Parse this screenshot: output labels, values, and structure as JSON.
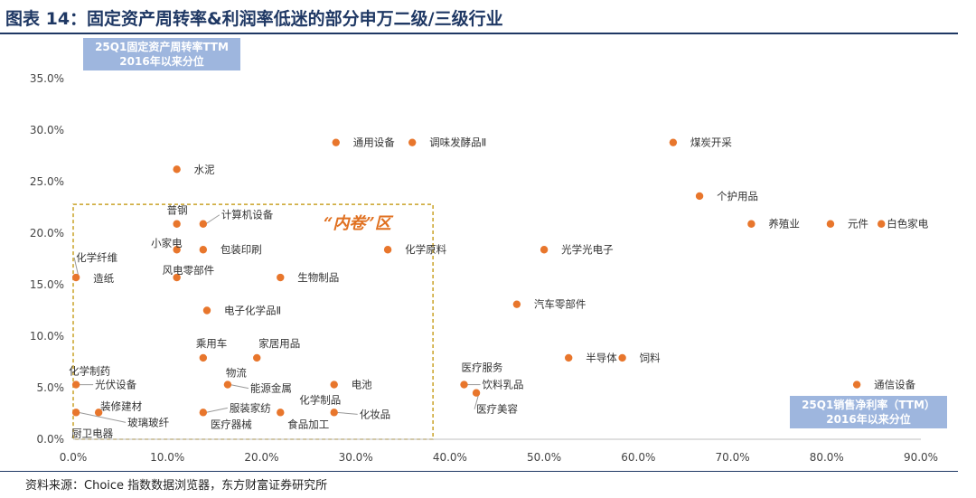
{
  "title": "图表 14：固定资产周转率&利润率低迷的部分申万二级/三级行业",
  "source": "资料来源：Choice 指数数据浏览器，东方财富证券研究所",
  "axis_notes": {
    "y": [
      "25Q1固定资产周转率TTM",
      "2016年以来分位"
    ],
    "x": [
      "25Q1销售净利率（TTM）",
      "2016年以来分位"
    ]
  },
  "zone_label": "“内卷”区",
  "colors": {
    "point": "#e8762c",
    "zone_border": "#c9a227",
    "title": "#1f3864",
    "badge": "#9eb6de"
  },
  "chart_data": {
    "type": "scatter",
    "xlim": [
      0,
      90
    ],
    "ylim": [
      0,
      35
    ],
    "x_ticks": [
      "0.0%",
      "10.0%",
      "20.0%",
      "30.0%",
      "40.0%",
      "50.0%",
      "60.0%",
      "70.0%",
      "80.0%",
      "90.0%"
    ],
    "y_ticks": [
      "0.0%",
      "5.0%",
      "10.0%",
      "15.0%",
      "20.0%",
      "25.0%",
      "30.0%",
      "35.0%"
    ],
    "grid": false,
    "zone": {
      "x": [
        0,
        38.2
      ],
      "y": [
        0,
        22.8
      ]
    },
    "points": [
      {
        "name": "通用设备",
        "x": 27.9,
        "y": 28.8
      },
      {
        "name": "调味发酵品Ⅱ",
        "x": 36.0,
        "y": 28.8
      },
      {
        "name": "煤炭开采",
        "x": 63.7,
        "y": 28.8
      },
      {
        "name": "水泥",
        "x": 11.0,
        "y": 26.2
      },
      {
        "name": "个护用品",
        "x": 66.5,
        "y": 23.6
      },
      {
        "name": "普钢",
        "x": 11.0,
        "y": 20.9
      },
      {
        "name": "计算机设备",
        "x": 13.8,
        "y": 20.9
      },
      {
        "name": "养殖业",
        "x": 72.0,
        "y": 20.9
      },
      {
        "name": "元件",
        "x": 80.4,
        "y": 20.9
      },
      {
        "name": "白色家电",
        "x": 85.8,
        "y": 20.9
      },
      {
        "name": "小家电",
        "x": 11.0,
        "y": 18.4
      },
      {
        "name": "包装印刷",
        "x": 13.8,
        "y": 18.4
      },
      {
        "name": "化学原料",
        "x": 33.4,
        "y": 18.4
      },
      {
        "name": "光学光电子",
        "x": 50.0,
        "y": 18.4
      },
      {
        "name": "化学纤维",
        "x": 0.3,
        "y": 15.7
      },
      {
        "name": "造纸",
        "x": 0.3,
        "y": 15.7
      },
      {
        "name": "风电零部件",
        "x": 11.0,
        "y": 15.7
      },
      {
        "name": "生物制品",
        "x": 22.0,
        "y": 15.7
      },
      {
        "name": "汽车零部件",
        "x": 47.1,
        "y": 13.1
      },
      {
        "name": "电子化学品Ⅱ",
        "x": 14.2,
        "y": 12.5
      },
      {
        "name": "乘用车",
        "x": 13.8,
        "y": 7.9
      },
      {
        "name": "家居用品",
        "x": 19.5,
        "y": 7.9
      },
      {
        "name": "半导体",
        "x": 52.6,
        "y": 7.9
      },
      {
        "name": "饲料",
        "x": 58.3,
        "y": 7.9
      },
      {
        "name": "化学制药",
        "x": 0.3,
        "y": 5.3
      },
      {
        "name": "光伏设备",
        "x": 0.3,
        "y": 5.3
      },
      {
        "name": "物流",
        "x": 16.4,
        "y": 5.3
      },
      {
        "name": "能源金属",
        "x": 16.4,
        "y": 5.3
      },
      {
        "name": "电池",
        "x": 27.7,
        "y": 5.3
      },
      {
        "name": "医疗服务",
        "x": 41.5,
        "y": 5.3
      },
      {
        "name": "饮料乳品",
        "x": 41.5,
        "y": 5.3
      },
      {
        "name": "通信设备",
        "x": 83.2,
        "y": 5.3
      },
      {
        "name": "医疗美容",
        "x": 42.8,
        "y": 4.5
      },
      {
        "name": "装修建材",
        "x": 2.7,
        "y": 2.6
      },
      {
        "name": "服装家纺",
        "x": 13.8,
        "y": 2.6
      },
      {
        "name": "医疗器械",
        "x": 13.8,
        "y": 2.6
      },
      {
        "name": "化学制品",
        "x": 22.0,
        "y": 2.6
      },
      {
        "name": "食品加工",
        "x": 22.0,
        "y": 2.6
      },
      {
        "name": "化妆品",
        "x": 27.7,
        "y": 2.6
      },
      {
        "name": "厨卫电器",
        "x": 0.3,
        "y": 2.6
      },
      {
        "name": "玻璃玻纤",
        "x": 0.3,
        "y": 2.6
      }
    ]
  }
}
